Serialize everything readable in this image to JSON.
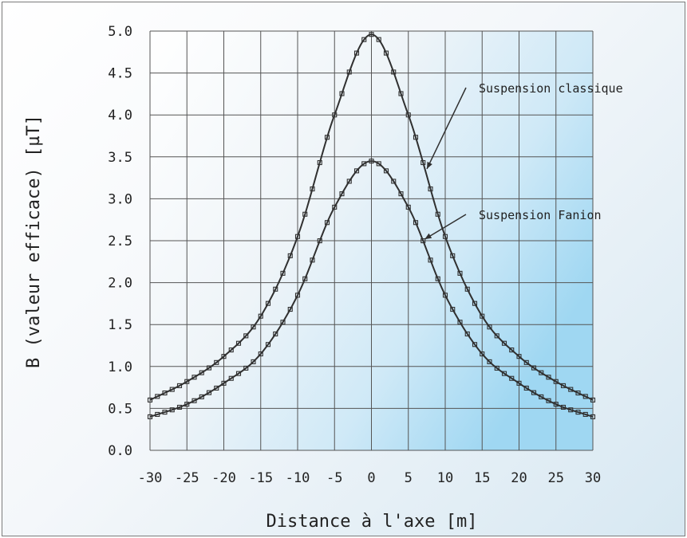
{
  "chart_data": {
    "type": "line",
    "title": "",
    "xlabel": "Distance à l'axe [m]",
    "ylabel": "B (valeur efficace) [µT]",
    "xlim": [
      -30,
      30
    ],
    "ylim": [
      0,
      5
    ],
    "xticks": [
      "-30",
      "-25",
      "-20",
      "-15",
      "-10",
      "-5",
      "0",
      "5",
      "10",
      "15",
      "20",
      "25",
      "30"
    ],
    "yticks": [
      "0.0",
      "0.5",
      "1.0",
      "1.5",
      "2.0",
      "2.5",
      "3.0",
      "3.5",
      "4.0",
      "4.5",
      "5.0"
    ],
    "grid": true,
    "x": [
      -30,
      -25,
      -20,
      -15,
      -10,
      -5,
      0,
      5,
      10,
      15,
      20,
      25,
      30
    ],
    "series": [
      {
        "name": "Suspension classique",
        "values": [
          0.6,
          0.82,
          1.12,
          1.6,
          2.55,
          4.0,
          4.96,
          4.0,
          2.55,
          1.6,
          1.12,
          0.82,
          0.6
        ]
      },
      {
        "name": "Suspension Fanion",
        "values": [
          0.4,
          0.55,
          0.8,
          1.15,
          1.85,
          2.9,
          3.45,
          2.9,
          1.85,
          1.15,
          0.8,
          0.55,
          0.4
        ]
      }
    ],
    "colors": {
      "line": "#303030",
      "grid": "#555555",
      "background_fade": "#bfe3f5"
    }
  }
}
